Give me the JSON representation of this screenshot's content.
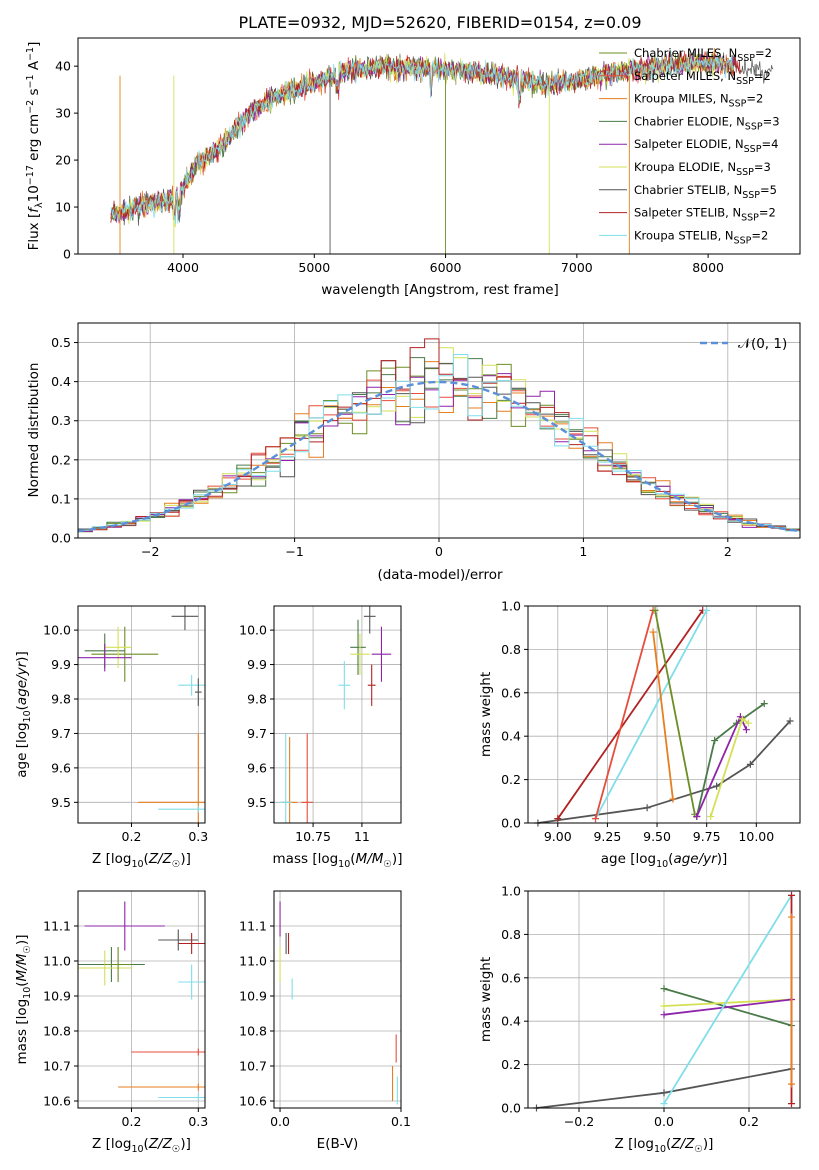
{
  "title": "PLATE=0932, MJD=52620, FIBERID=0154, z=0.09",
  "colors": [
    "#6b8e23",
    "#e74c3c",
    "#e67e22",
    "#4a7a4a",
    "#8e24aa",
    "#d4e157",
    "#555555",
    "#b22222",
    "#80deea"
  ],
  "chart_data": [
    {
      "id": "spectrum",
      "type": "line",
      "xlabel": "wavelength [Angstrom, rest frame]",
      "ylabel": "Flux [f_λ10^−17 erg cm^−2 s^−1 A^−1]",
      "xlim": [
        3200,
        8700
      ],
      "ylim": [
        0,
        46
      ],
      "xticks": [
        4000,
        5000,
        6000,
        7000,
        8000
      ],
      "yticks": [
        0,
        10,
        20,
        30,
        40
      ],
      "grid": false,
      "legend_position": "top-right",
      "legend": [
        "Chabrier MILES, N_SSP=2",
        "Salpeter MILES, N_SSP=2",
        "Kroupa MILES, N_SSP=2",
        "Chabrier ELODIE, N_SSP=3",
        "Salpeter ELODIE, N_SSP=4",
        "Kroupa ELODIE, N_SSP=3",
        "Chabrier STELIB, N_SSP=5",
        "Salpeter STELIB, N_SSP=2",
        "Kroupa STELIB, N_SSP=2"
      ],
      "continuum_x": [
        3500,
        3700,
        3900,
        4000,
        4100,
        4300,
        4500,
        4700,
        5000,
        5200,
        5500,
        5800,
        6000,
        6300,
        6600,
        6800,
        7000,
        7200,
        7400,
        7600,
        7800,
        8000,
        8200,
        8400
      ],
      "continuum_y": [
        8.5,
        10.5,
        11.5,
        14,
        19,
        23,
        30,
        33.5,
        36.5,
        38.5,
        40,
        39.5,
        39.5,
        38.5,
        37,
        36,
        37,
        38,
        39,
        40,
        40.5,
        41,
        40,
        39
      ]
    },
    {
      "id": "residuals",
      "type": "line",
      "xlabel": "(data-model)/error",
      "ylabel": "Normed distribution",
      "xlim": [
        -2.5,
        2.5
      ],
      "ylim": [
        0,
        0.55
      ],
      "xticks": [
        -2,
        -1,
        0,
        1,
        2
      ],
      "xticklabels": [
        "−2",
        "−1",
        "0",
        "1",
        "2"
      ],
      "yticks": [
        0.0,
        0.1,
        0.2,
        0.3,
        0.4,
        0.5
      ],
      "grid": true,
      "legend_position": "top-right",
      "legend": [
        "N(0,1)"
      ]
    },
    {
      "id": "age-vs-Z",
      "type": "scatter",
      "xlabel": "Z [log10(Z/Z☉)]",
      "ylabel": "age [log10(age/yr)]",
      "xlim": [
        0.12,
        0.31
      ],
      "ylim": [
        9.44,
        10.07
      ],
      "xticks": [
        0.2,
        0.3
      ],
      "yticks": [
        9.5,
        9.6,
        9.7,
        9.8,
        9.9,
        10.0
      ],
      "points": [
        {
          "x": 0.19,
          "y": 9.93,
          "xerr": 0.05,
          "yerr": 0.08,
          "c": 0
        },
        {
          "x": 0.16,
          "y": 9.94,
          "xerr": 0.03,
          "yerr": 0.05,
          "c": 3
        },
        {
          "x": 0.18,
          "y": 9.95,
          "xerr": 0.02,
          "yerr": 0.06,
          "c": 5
        },
        {
          "x": 0.16,
          "y": 9.92,
          "xerr": 0.04,
          "yerr": 0.04,
          "c": 4
        },
        {
          "x": 0.28,
          "y": 10.04,
          "xerr": 0.02,
          "yerr": 0.04,
          "c": 6
        },
        {
          "x": 0.29,
          "y": 9.84,
          "xerr": 0.02,
          "yerr": 0.03,
          "c": 8
        },
        {
          "x": 0.3,
          "y": 9.82,
          "xerr": 0.005,
          "yerr": 0.04,
          "c": 6
        },
        {
          "x": 0.3,
          "y": 9.5,
          "xerr": 0.09,
          "yerr": 0.2,
          "c": 2
        },
        {
          "x": 0.3,
          "y": 9.48,
          "xerr": 0.06,
          "yerr": 0.01,
          "c": 8
        }
      ]
    },
    {
      "id": "age-vs-mass",
      "type": "scatter",
      "xlabel": "mass [log10(M/M☉)]",
      "ylabel": "",
      "xlim": [
        10.55,
        11.2
      ],
      "ylim": [
        9.44,
        10.07
      ],
      "xticks": [
        10.75,
        11.0
      ],
      "yticks": [
        9.5,
        9.6,
        9.7,
        9.8,
        9.9,
        10.0
      ],
      "points": [
        {
          "x": 10.98,
          "y": 9.95,
          "xerr": 0.04,
          "yerr": 0.08,
          "c": 3
        },
        {
          "x": 10.99,
          "y": 9.93,
          "xerr": 0.05,
          "yerr": 0.06,
          "c": 5
        },
        {
          "x": 11.04,
          "y": 10.04,
          "xerr": 0.03,
          "yerr": 0.05,
          "c": 6
        },
        {
          "x": 11.1,
          "y": 9.93,
          "xerr": 0.05,
          "yerr": 0.08,
          "c": 4
        },
        {
          "x": 10.91,
          "y": 9.84,
          "xerr": 0.03,
          "yerr": 0.07,
          "c": 8
        },
        {
          "x": 11.05,
          "y": 9.84,
          "xerr": 0.02,
          "yerr": 0.06,
          "c": 7
        },
        {
          "x": 10.63,
          "y": 9.5,
          "xerr": 0.04,
          "yerr": 0.19,
          "c": 2
        },
        {
          "x": 10.61,
          "y": 9.5,
          "xerr": 0.03,
          "yerr": 0.2,
          "c": 8
        },
        {
          "x": 10.72,
          "y": 9.5,
          "xerr": 0.03,
          "yerr": 0.2,
          "c": 1
        }
      ]
    },
    {
      "id": "weight-vs-age",
      "type": "line",
      "xlabel": "age [log10(age/yr)]",
      "ylabel": "mass weight",
      "xlim": [
        8.85,
        10.22
      ],
      "ylim": [
        0,
        1.0
      ],
      "xticks": [
        9.0,
        9.25,
        9.5,
        9.75,
        10.0
      ],
      "xticklabels": [
        "9.00",
        "9.25",
        "9.50",
        "9.75",
        "10.00"
      ],
      "yticks": [
        0.0,
        0.2,
        0.4,
        0.6,
        0.8,
        1.0
      ],
      "series": [
        {
          "c": 6,
          "x": [
            8.9,
            9.45,
            9.8,
            9.97,
            10.17
          ],
          "y": [
            0.0,
            0.07,
            0.17,
            0.27,
            0.47
          ]
        },
        {
          "c": 7,
          "x": [
            9.0,
            9.73
          ],
          "y": [
            0.02,
            0.98
          ]
        },
        {
          "c": 8,
          "x": [
            9.19,
            9.75
          ],
          "y": [
            0.02,
            0.98
          ]
        },
        {
          "c": 1,
          "x": [
            9.19,
            9.48
          ],
          "y": [
            0.02,
            0.98
          ]
        },
        {
          "c": 2,
          "x": [
            9.48,
            9.58
          ],
          "y": [
            0.88,
            0.11
          ]
        },
        {
          "c": 0,
          "x": [
            9.49,
            9.69
          ],
          "y": [
            0.98,
            0.04
          ]
        },
        {
          "c": 3,
          "x": [
            9.7,
            9.79,
            9.9,
            10.04
          ],
          "y": [
            0.03,
            0.38,
            0.46,
            0.55
          ]
        },
        {
          "c": 4,
          "x": [
            9.7,
            9.92,
            9.95
          ],
          "y": [
            0.03,
            0.49,
            0.43
          ]
        },
        {
          "c": 5,
          "x": [
            9.77,
            9.93,
            9.96
          ],
          "y": [
            0.03,
            0.48,
            0.46
          ]
        }
      ]
    },
    {
      "id": "mass-vs-Z",
      "type": "scatter",
      "xlabel": "Z [log10(Z/Z☉)]",
      "ylabel": "mass [log10(M/M☉)]",
      "xlim": [
        0.12,
        0.31
      ],
      "ylim": [
        10.58,
        11.2
      ],
      "xticks": [
        0.2,
        0.3
      ],
      "yticks": [
        10.6,
        10.7,
        10.8,
        10.9,
        11.0,
        11.1
      ],
      "points": [
        {
          "x": 0.17,
          "y": 10.99,
          "xerr": 0.05,
          "yerr": 0.05,
          "c": 3
        },
        {
          "x": 0.16,
          "y": 10.98,
          "xerr": 0.04,
          "yerr": 0.05,
          "c": 5
        },
        {
          "x": 0.18,
          "y": 10.99,
          "xerr": 0.02,
          "yerr": 0.05,
          "c": 0
        },
        {
          "x": 0.19,
          "y": 11.1,
          "xerr": 0.06,
          "yerr": 0.07,
          "c": 4
        },
        {
          "x": 0.27,
          "y": 11.06,
          "xerr": 0.03,
          "yerr": 0.03,
          "c": 6
        },
        {
          "x": 0.29,
          "y": 11.05,
          "xerr": 0.02,
          "yerr": 0.03,
          "c": 7
        },
        {
          "x": 0.29,
          "y": 10.94,
          "xerr": 0.02,
          "yerr": 0.05,
          "c": 8
        },
        {
          "x": 0.3,
          "y": 10.74,
          "xerr": 0.1,
          "yerr": 0.01,
          "c": 1
        },
        {
          "x": 0.3,
          "y": 10.64,
          "xerr": 0.12,
          "yerr": 0.01,
          "c": 2
        },
        {
          "x": 0.3,
          "y": 10.61,
          "xerr": 0.06,
          "yerr": 0.01,
          "c": 8
        }
      ]
    },
    {
      "id": "mass-vs-EBV",
      "type": "scatter",
      "xlabel": "E(B-V)",
      "ylabel": "",
      "xlim": [
        -0.005,
        0.1
      ],
      "ylim": [
        10.58,
        11.2
      ],
      "xticks": [
        0.0,
        0.1
      ],
      "xticklabels": [
        "0.0",
        "0.1"
      ],
      "yticks": [
        10.6,
        10.7,
        10.8,
        10.9,
        11.0,
        11.1
      ],
      "points": [
        {
          "x": 0.0,
          "y": 11.12,
          "xerr": 0,
          "yerr": 0.05,
          "c": 4
        },
        {
          "x": 0.0,
          "y": 10.99,
          "xerr": 0,
          "yerr": 0.05,
          "c": 5
        },
        {
          "x": 0.005,
          "y": 11.05,
          "xerr": 0,
          "yerr": 0.03,
          "c": 6
        },
        {
          "x": 0.007,
          "y": 11.05,
          "xerr": 0,
          "yerr": 0.03,
          "c": 7
        },
        {
          "x": 0.01,
          "y": 10.92,
          "xerr": 0,
          "yerr": 0.03,
          "c": 8
        },
        {
          "x": 0.096,
          "y": 10.75,
          "xerr": 0,
          "yerr": 0.04,
          "c": 1
        },
        {
          "x": 0.093,
          "y": 10.65,
          "xerr": 0,
          "yerr": 0.05,
          "c": 2
        },
        {
          "x": 0.097,
          "y": 10.63,
          "xerr": 0,
          "yerr": 0.04,
          "c": 8
        }
      ]
    },
    {
      "id": "weight-vs-Z",
      "type": "line",
      "xlabel": "Z [log10(Z/Z☉)]",
      "ylabel": "mass weight",
      "xlim": [
        -0.32,
        0.32
      ],
      "ylim": [
        0,
        1.0
      ],
      "xticks": [
        -0.2,
        0.0,
        0.2
      ],
      "xticklabels": [
        "−0.2",
        "0.0",
        "0.2"
      ],
      "yticks": [
        0.0,
        0.2,
        0.4,
        0.6,
        0.8,
        1.0
      ],
      "series": [
        {
          "c": 6,
          "x": [
            -0.3,
            0.0,
            0.3
          ],
          "y": [
            0.0,
            0.07,
            0.18
          ]
        },
        {
          "c": 3,
          "x": [
            0.0,
            0.3
          ],
          "y": [
            0.55,
            0.38
          ]
        },
        {
          "c": 5,
          "x": [
            0.0,
            0.3
          ],
          "y": [
            0.47,
            0.5
          ]
        },
        {
          "c": 4,
          "x": [
            0.0,
            0.3
          ],
          "y": [
            0.43,
            0.5
          ]
        },
        {
          "c": 8,
          "x": [
            0.0,
            0.3
          ],
          "y": [
            0.02,
            0.98
          ]
        },
        {
          "c": 7,
          "x": [
            0.3,
            0.3
          ],
          "y": [
            0.02,
            0.98
          ]
        },
        {
          "c": 2,
          "x": [
            0.3,
            0.3
          ],
          "y": [
            0.11,
            0.88
          ]
        }
      ]
    }
  ]
}
